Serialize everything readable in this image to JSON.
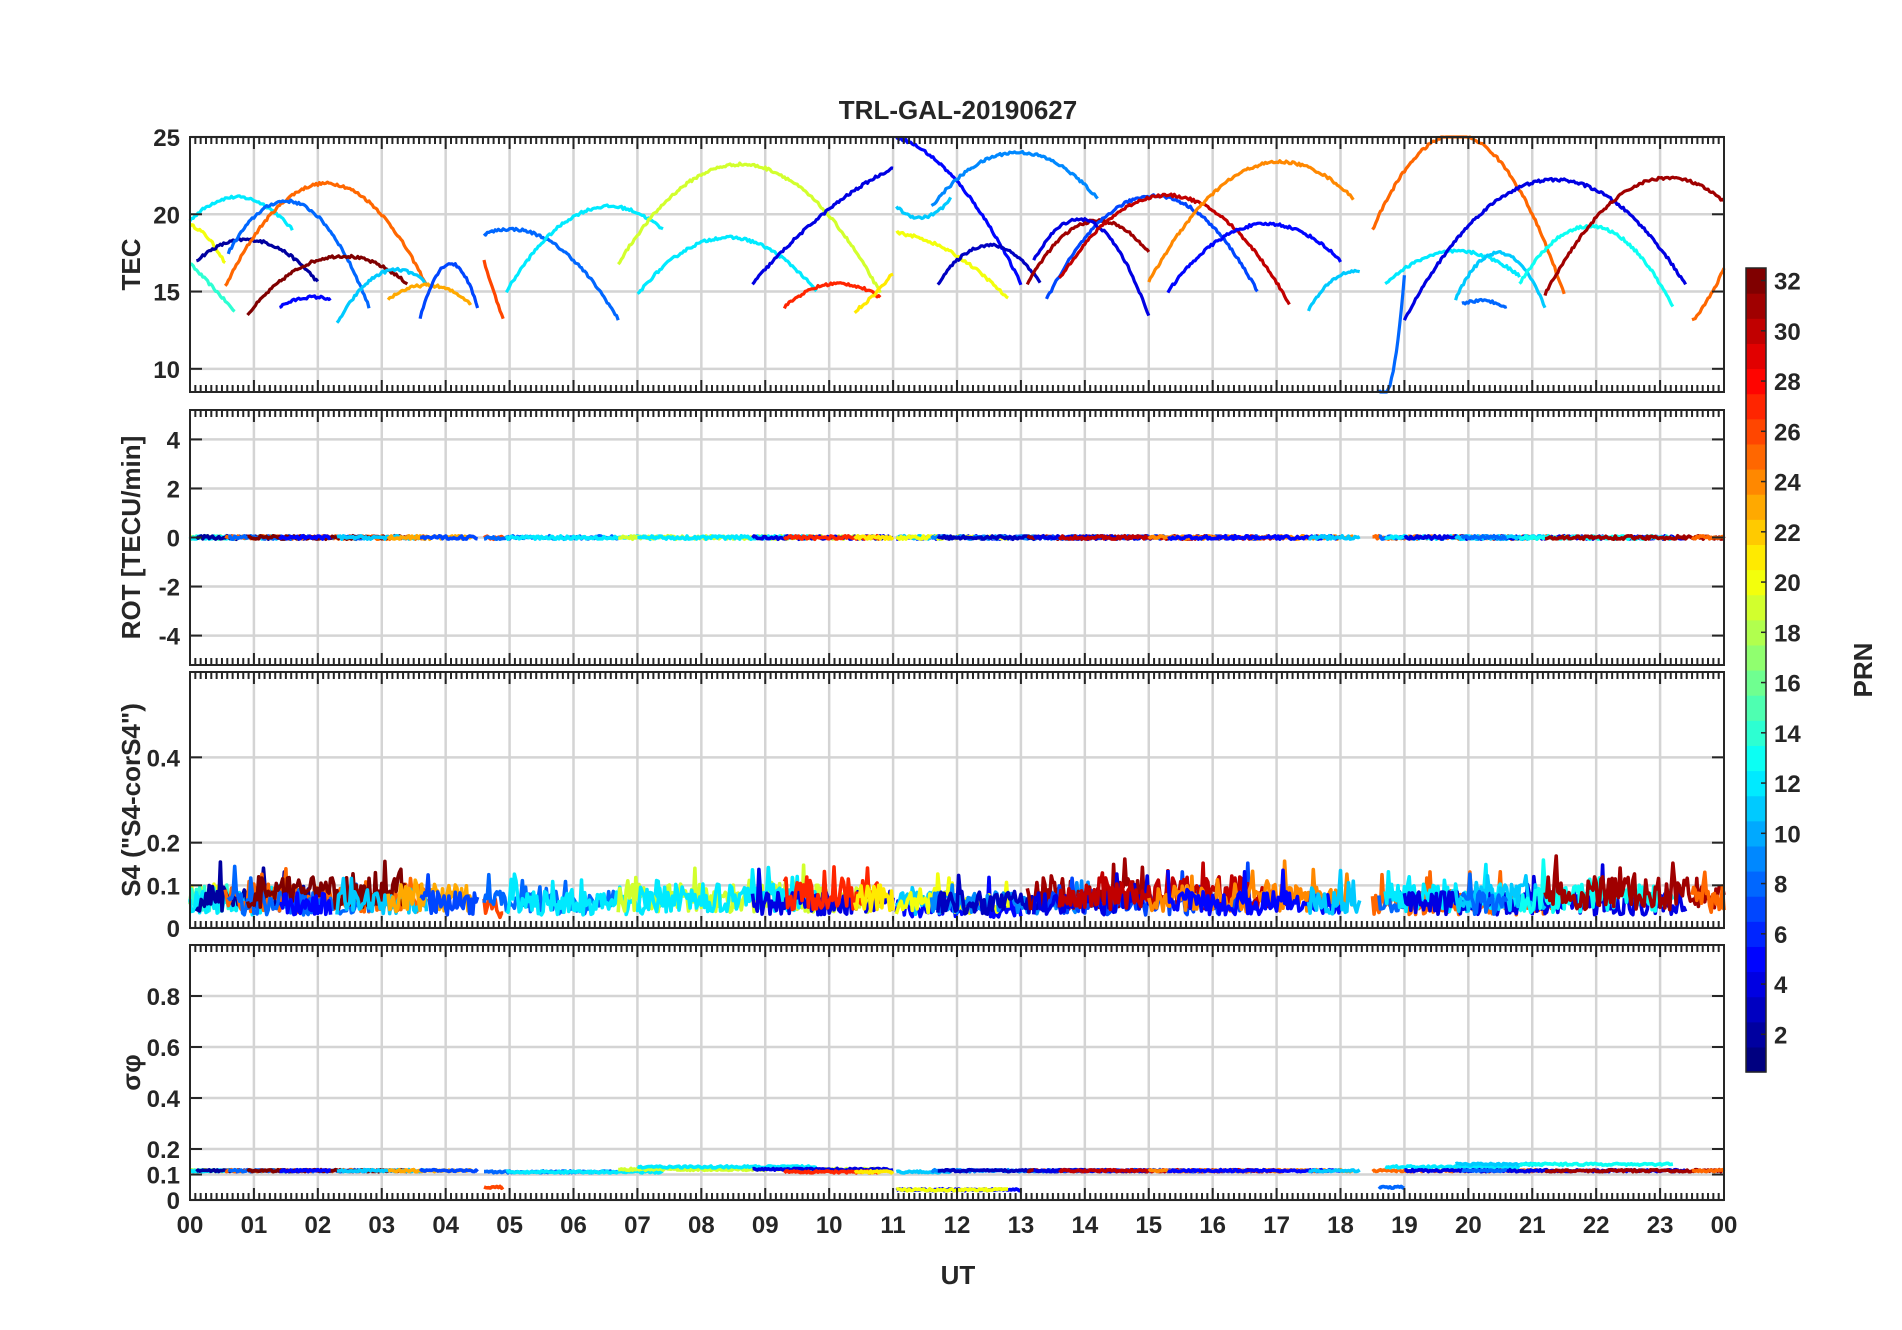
{
  "figure": {
    "title": "TRL-GAL-20190627",
    "xlabel": "UT"
  },
  "chart_data": {
    "type": "line",
    "title": "TRL-GAL-20190627",
    "x_unit": "UT hour",
    "x_ticks": [
      "00",
      "01",
      "02",
      "03",
      "04",
      "05",
      "06",
      "07",
      "08",
      "09",
      "10",
      "11",
      "12",
      "13",
      "14",
      "15",
      "16",
      "17",
      "18",
      "19",
      "20",
      "21",
      "22",
      "23",
      "00"
    ],
    "xlim": [
      0,
      24
    ],
    "grid": true,
    "panels": [
      {
        "id": "tec",
        "ylabel": "TEC",
        "ylim": [
          8.5,
          25
        ],
        "y_ticks": [
          10,
          15,
          20,
          25
        ],
        "y_tick_labels": [
          "10",
          "15",
          "20",
          "25"
        ]
      },
      {
        "id": "rot",
        "ylabel": "ROT [TECU/min]",
        "ylim": [
          -5.2,
          5.2
        ],
        "y_ticks": [
          -4,
          -2,
          0,
          2,
          4
        ],
        "y_tick_labels": [
          "-4",
          "-2",
          "0",
          "2",
          "4"
        ]
      },
      {
        "id": "s4",
        "ylabel": "S4 (\"S4-corS4\")",
        "ylim": [
          0,
          0.6
        ],
        "y_ticks": [
          0,
          0.1,
          0.2,
          0.4
        ],
        "y_tick_labels": [
          "0",
          "0.1",
          "0.2",
          "0.4"
        ]
      },
      {
        "id": "sigma",
        "ylabel": "σφ",
        "ylim": [
          0,
          1.0
        ],
        "y_ticks": [
          0,
          0.1,
          0.2,
          0.4,
          0.6,
          0.8
        ],
        "y_tick_labels": [
          "0",
          "0.1",
          "0.2",
          "0.4",
          "0.6",
          "0.8"
        ]
      }
    ],
    "colorbar": {
      "label": "PRN",
      "min": 1,
      "max": 32,
      "colormap": "jet",
      "ticks": [
        2,
        4,
        6,
        8,
        10,
        12,
        14,
        16,
        18,
        20,
        22,
        24,
        26,
        28,
        30,
        32
      ]
    },
    "series": [
      {
        "prn": 20,
        "start": 0.0,
        "end": 0.55,
        "tec": [
          19.3,
          18.5,
          16.8
        ],
        "rot": 0.0,
        "s4": 0.06,
        "sigma": 0.115
      },
      {
        "prn": 14,
        "start": 0.0,
        "end": 0.7,
        "tec": [
          16.8,
          15.3,
          13.7
        ],
        "rot": 0.0,
        "s4": 0.06,
        "sigma": 0.115
      },
      {
        "prn": 12,
        "start": 0.0,
        "end": 1.6,
        "tec": [
          19.6,
          21.1,
          19.0
        ],
        "rot": 0.0,
        "s4": 0.05,
        "sigma": 0.115
      },
      {
        "prn": 2,
        "start": 0.1,
        "end": 2.0,
        "tec": [
          17.0,
          18.3,
          15.6
        ],
        "rot": 0.0,
        "s4": 0.06,
        "sigma": 0.115
      },
      {
        "prn": 25,
        "start": 0.55,
        "end": 3.7,
        "tec": [
          15.3,
          22.0,
          15.4
        ],
        "rot": 0.0,
        "s4": 0.06,
        "sigma": 0.115
      },
      {
        "prn": 8,
        "start": 0.6,
        "end": 2.8,
        "tec": [
          17.5,
          20.7,
          14.0
        ],
        "rot": 0.0,
        "s4": 0.05,
        "sigma": 0.115
      },
      {
        "prn": 32,
        "start": 0.9,
        "end": 3.4,
        "tec": [
          13.5,
          17.2,
          15.5
        ],
        "rot": 0.0,
        "s4": 0.07,
        "sigma": 0.115
      },
      {
        "prn": 5,
        "start": 1.4,
        "end": 2.2,
        "tec": [
          14.0,
          14.6,
          14.5
        ],
        "rot": 0.0,
        "s4": 0.05,
        "sigma": 0.115
      },
      {
        "prn": 11,
        "start": 2.3,
        "end": 3.7,
        "tec": [
          12.9,
          16.2,
          15.5
        ],
        "rot": 0.0,
        "s4": 0.05,
        "sigma": 0.115
      },
      {
        "prn": 23,
        "start": 3.1,
        "end": 4.4,
        "tec": [
          14.5,
          15.4,
          14.2
        ],
        "rot": 0.0,
        "s4": 0.06,
        "sigma": 0.115
      },
      {
        "prn": 7,
        "start": 3.6,
        "end": 4.5,
        "tec": [
          13.3,
          16.8,
          14.0
        ],
        "rot": 0.0,
        "s4": 0.05,
        "sigma": 0.115
      },
      {
        "prn": 26,
        "start": 4.6,
        "end": 4.9,
        "tec": [
          17.0,
          15.0,
          13.3
        ],
        "rot": 0.0,
        "s4": 0.04,
        "sigma": 0.05
      },
      {
        "prn": 8,
        "start": 4.6,
        "end": 6.7,
        "tec": [
          18.7,
          18.2,
          13.2
        ],
        "rot": 0.0,
        "s4": 0.05,
        "sigma": 0.11
      },
      {
        "prn": 12,
        "start": 4.95,
        "end": 7.4,
        "tec": [
          15.0,
          20.2,
          19.0
        ],
        "rot": 0.0,
        "s4": 0.05,
        "sigma": 0.11
      },
      {
        "prn": 19,
        "start": 6.7,
        "end": 10.8,
        "tec": [
          16.8,
          23.2,
          14.9
        ],
        "rot": 0.0,
        "s4": 0.06,
        "sigma": 0.12
      },
      {
        "prn": 12,
        "start": 7.0,
        "end": 9.8,
        "tec": [
          14.8,
          18.5,
          15.0
        ],
        "rot": 0.0,
        "s4": 0.06,
        "sigma": 0.13
      },
      {
        "prn": 4,
        "start": 8.8,
        "end": 11.0,
        "tec": [
          15.5,
          20.0,
          23.0
        ],
        "rot": 0.0,
        "s4": 0.05,
        "sigma": 0.12
      },
      {
        "prn": 27,
        "start": 9.3,
        "end": 10.8,
        "tec": [
          14.0,
          15.5,
          14.6
        ],
        "rot": 0.0,
        "s4": 0.07,
        "sigma": 0.11
      },
      {
        "prn": 21,
        "start": 10.4,
        "end": 11.0,
        "tec": [
          13.7,
          14.8,
          16.2
        ],
        "rot": 0.0,
        "s4": 0.06,
        "sigma": 0.11
      },
      {
        "prn": 5,
        "start": 11.05,
        "end": 13.0,
        "tec": [
          25.0,
          22.0,
          15.5
        ],
        "rot": 0.0,
        "s4": 0.04,
        "sigma": 0.04
      },
      {
        "prn": 11,
        "start": 11.05,
        "end": 11.9,
        "tec": [
          20.5,
          19.8,
          21.0
        ],
        "rot": 0.0,
        "s4": 0.05,
        "sigma": 0.11
      },
      {
        "prn": 20,
        "start": 11.05,
        "end": 12.8,
        "tec": [
          18.8,
          17.5,
          14.5
        ],
        "rot": 0.0,
        "s4": 0.05,
        "sigma": 0.04
      },
      {
        "prn": 9,
        "start": 11.6,
        "end": 14.2,
        "tec": [
          20.5,
          24.0,
          21.0
        ],
        "rot": 0.0,
        "s4": 0.05,
        "sigma": 0.115
      },
      {
        "prn": 3,
        "start": 11.7,
        "end": 13.3,
        "tec": [
          15.5,
          18.0,
          15.6
        ],
        "rot": 0.0,
        "s4": 0.05,
        "sigma": 0.115
      },
      {
        "prn": 31,
        "start": 13.1,
        "end": 15.0,
        "tec": [
          15.5,
          19.5,
          17.5
        ],
        "rot": 0.0,
        "s4": 0.07,
        "sigma": 0.115
      },
      {
        "prn": 7,
        "start": 13.4,
        "end": 16.7,
        "tec": [
          14.5,
          21.2,
          15.0
        ],
        "rot": 0.0,
        "s4": 0.05,
        "sigma": 0.115
      },
      {
        "prn": 4,
        "start": 13.2,
        "end": 15.0,
        "tec": [
          17.0,
          19.5,
          13.4
        ],
        "rot": 0.0,
        "s4": 0.05,
        "sigma": 0.115
      },
      {
        "prn": 30,
        "start": 13.6,
        "end": 17.2,
        "tec": [
          15.8,
          21.2,
          14.2
        ],
        "rot": 0.0,
        "s4": 0.07,
        "sigma": 0.115
      },
      {
        "prn": 24,
        "start": 15.0,
        "end": 18.2,
        "tec": [
          15.6,
          23.0,
          21.0
        ],
        "rot": 0.0,
        "s4": 0.06,
        "sigma": 0.115
      },
      {
        "prn": 5,
        "start": 15.3,
        "end": 18.0,
        "tec": [
          15.0,
          19.3,
          17.0
        ],
        "rot": 0.0,
        "s4": 0.05,
        "sigma": 0.115
      },
      {
        "prn": 11,
        "start": 17.5,
        "end": 18.3,
        "tec": [
          13.8,
          15.8,
          16.3
        ],
        "rot": 0.0,
        "s4": 0.05,
        "sigma": 0.115
      },
      {
        "prn": 25,
        "start": 18.5,
        "end": 21.5,
        "tec": [
          19.0,
          25.0,
          14.8
        ],
        "rot": 0.0,
        "s4": 0.05,
        "sigma": 0.115
      },
      {
        "prn": 8,
        "start": 18.6,
        "end": 19.0,
        "tec": [
          8.7,
          9.4,
          16.0
        ],
        "rot": 0.0,
        "s4": 0.05,
        "sigma": 0.05
      },
      {
        "prn": 12,
        "start": 18.7,
        "end": 20.8,
        "tec": [
          15.5,
          17.6,
          16.0
        ],
        "rot": 0.0,
        "s4": 0.06,
        "sigma": 0.13
      },
      {
        "prn": 4,
        "start": 19.0,
        "end": 23.4,
        "tec": [
          13.2,
          22.2,
          15.4
        ],
        "rot": 0.0,
        "s4": 0.05,
        "sigma": 0.115
      },
      {
        "prn": 11,
        "start": 19.8,
        "end": 21.2,
        "tec": [
          14.5,
          17.5,
          14.0
        ],
        "rot": 0.0,
        "s4": 0.06,
        "sigma": 0.14
      },
      {
        "prn": 8,
        "start": 19.9,
        "end": 20.6,
        "tec": [
          14.2,
          14.4,
          14.0
        ],
        "rot": 0.0,
        "s4": 0.05,
        "sigma": 0.115
      },
      {
        "prn": 13,
        "start": 20.8,
        "end": 23.2,
        "tec": [
          15.5,
          19.2,
          14.0
        ],
        "rot": 0.0,
        "s4": 0.06,
        "sigma": 0.14
      },
      {
        "prn": 31,
        "start": 21.2,
        "end": 24.0,
        "tec": [
          14.8,
          21.8,
          20.8
        ],
        "rot": 0.0,
        "s4": 0.07,
        "sigma": 0.115
      },
      {
        "prn": 25,
        "start": 23.5,
        "end": 24.0,
        "tec": [
          13.1,
          14.5,
          16.5
        ],
        "rot": 0.0,
        "s4": 0.06,
        "sigma": 0.115
      }
    ]
  }
}
